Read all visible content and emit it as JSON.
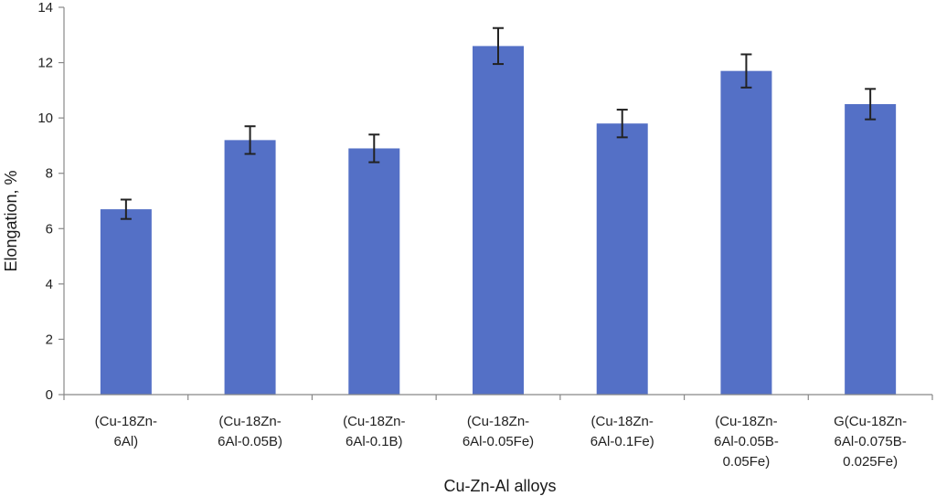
{
  "chart_data": {
    "type": "bar",
    "title": "",
    "xlabel": "Cu-Zn-Al alloys",
    "ylabel": "Elongation, %",
    "ylim": [
      0,
      14
    ],
    "yticks": [
      0,
      2,
      4,
      6,
      8,
      10,
      12,
      14
    ],
    "grid": false,
    "bar_color": "#5470c6",
    "errorbar_color": "#222222",
    "categories": [
      [
        "(Cu-18Zn-",
        "6Al)"
      ],
      [
        "(Cu-18Zn-",
        "6Al-0.05B)"
      ],
      [
        "(Cu-18Zn-",
        "6Al-0.1B)"
      ],
      [
        "(Cu-18Zn-",
        "6Al-0.05Fe)"
      ],
      [
        "(Cu-18Zn-",
        "6Al-0.1Fe)"
      ],
      [
        "(Cu-18Zn-",
        "6Al-0.05B-",
        "0.05Fe)"
      ],
      [
        "G(Cu-18Zn-",
        "6Al-0.075B-",
        "0.025Fe)"
      ]
    ],
    "values": [
      6.7,
      9.2,
      8.9,
      12.6,
      9.8,
      11.7,
      10.5
    ],
    "errors": [
      0.35,
      0.5,
      0.5,
      0.65,
      0.5,
      0.6,
      0.55
    ]
  }
}
